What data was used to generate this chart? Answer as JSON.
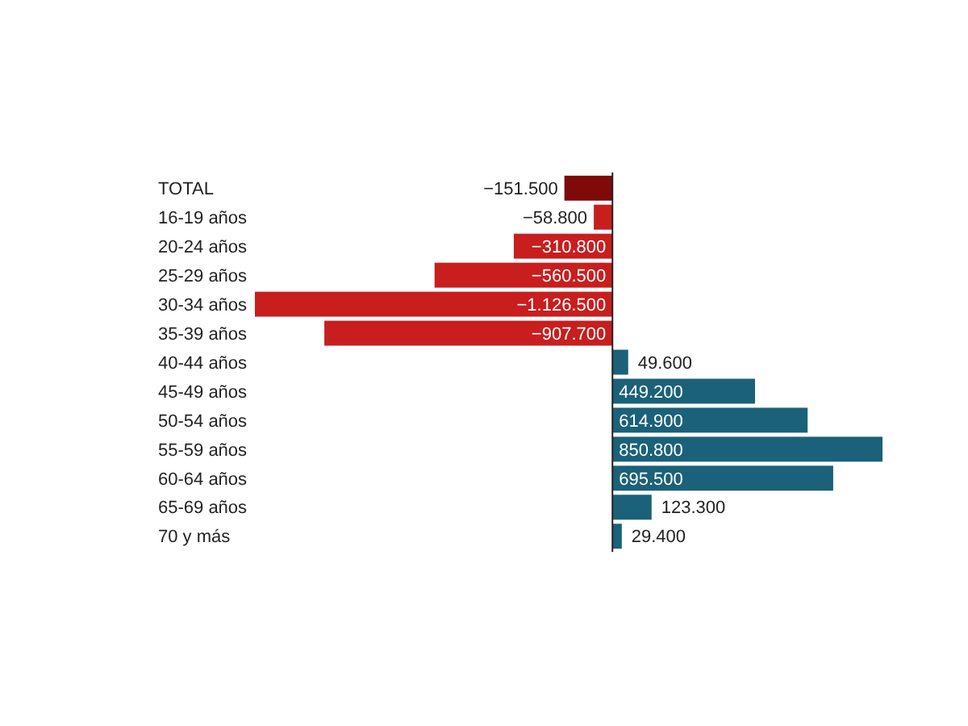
{
  "chart_data": {
    "type": "bar",
    "orientation": "horizontal",
    "categories": [
      "TOTAL",
      "16-19 años",
      "20-24 años",
      "25-29 años",
      "30-34 años",
      "35-39 años",
      "40-44 años",
      "45-49 años",
      "50-54 años",
      "55-59 años",
      "60-64 años",
      "65-69 años",
      "70 y más"
    ],
    "values": [
      -151500,
      -58800,
      -310800,
      -560500,
      -1126500,
      -907700,
      49600,
      449200,
      614900,
      850800,
      695500,
      123300,
      29400
    ],
    "value_labels": [
      "−151.500",
      "−58.800",
      "−310.800",
      "−560.500",
      "−1.126.500",
      "−907.700",
      "49.600",
      "449.200",
      "614.900",
      "850.800",
      "695.500",
      "123.300",
      "29.400"
    ],
    "colors": [
      "#7f0a0a",
      "#c81e1e",
      "#c81e1e",
      "#c81e1e",
      "#c81e1e",
      "#c81e1e",
      "#1a6179",
      "#1a6179",
      "#1a6179",
      "#1a6179",
      "#1a6179",
      "#1a6179",
      "#1a6179"
    ]
  }
}
